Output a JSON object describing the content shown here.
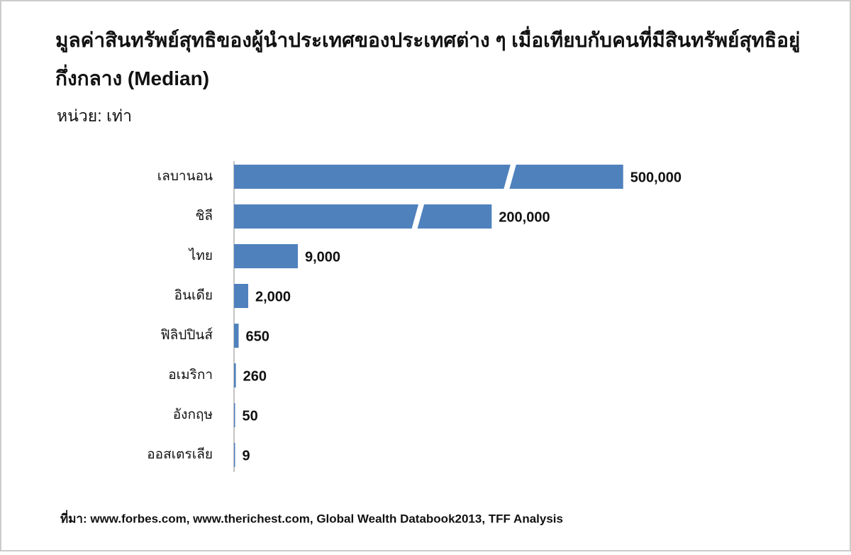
{
  "chart_data": {
    "type": "bar",
    "orientation": "horizontal",
    "title": "มูลค่าสินทรัพย์สุทธิของผู้นำประเทศของประเทศต่าง ๆ เมื่อเทียบกับคนที่มีสินทรัพย์สุทธิอยู่กึ่งกลาง (Median)",
    "subtitle": "หน่วย: เท่า",
    "categories": [
      "เลบานอน",
      "ชิลี",
      "ไทย",
      "อินเดีย",
      "ฟิลิปปินส์",
      "อเมริกา",
      "อังกฤษ",
      "ออสเตรเลีย"
    ],
    "values": [
      500000,
      200000,
      9000,
      2000,
      650,
      260,
      50,
      9
    ],
    "value_labels": [
      "500,000",
      "200,000",
      "9,000",
      "2,000",
      "650",
      "260",
      "50",
      "9"
    ],
    "color": "#4f81bd",
    "source": "ที่มา: www.forbes.com, www.therichest.com, Global Wealth Databook2013, TFF Analysis"
  }
}
